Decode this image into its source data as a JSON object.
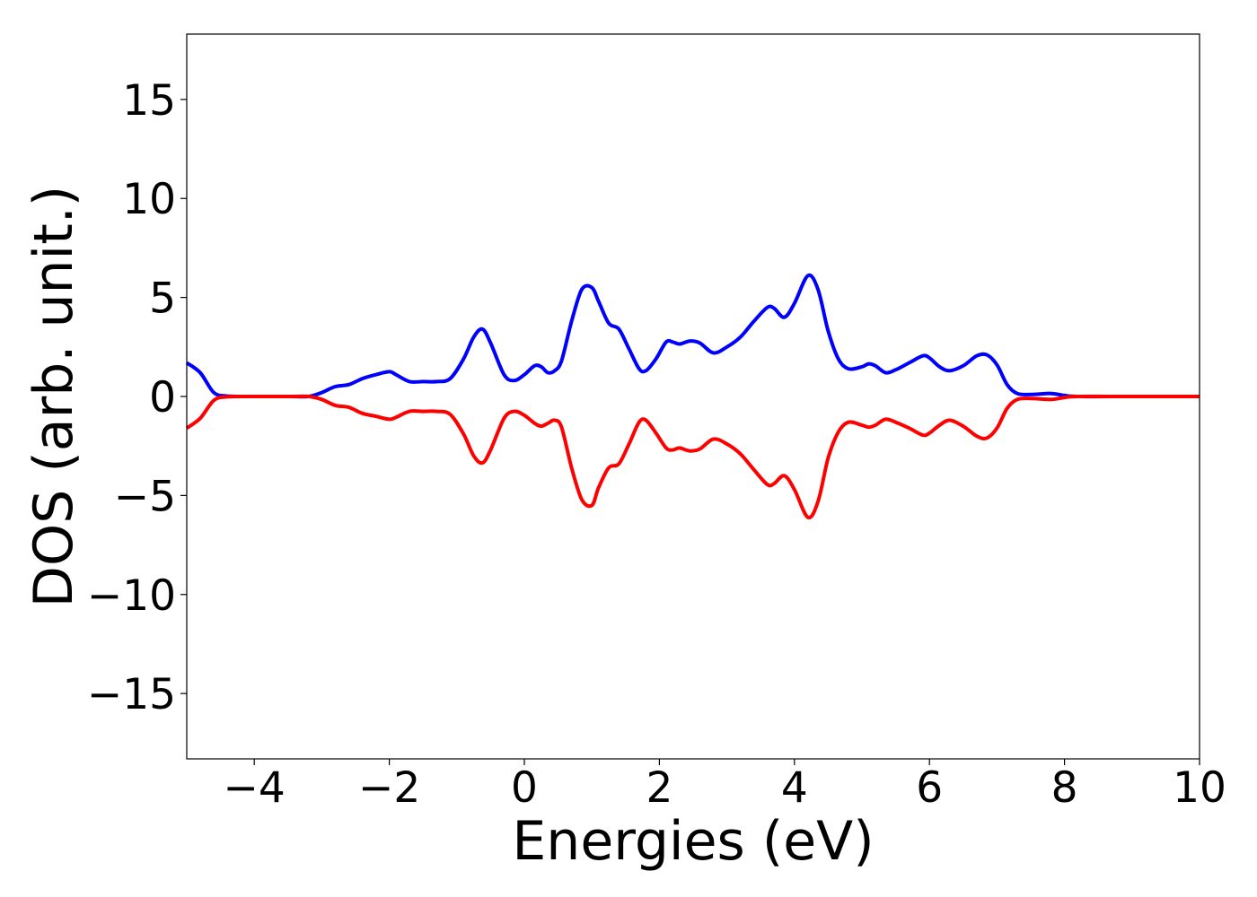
{
  "chart_data": {
    "type": "line",
    "xlabel": "Energies (eV)",
    "ylabel": "DOS (arb. unit.)",
    "xlim": [
      -5,
      10
    ],
    "ylim": [
      -18.3,
      18.3
    ],
    "xticks": [
      -4,
      -2,
      0,
      2,
      4,
      6,
      8,
      10
    ],
    "xtick_labels": [
      "−4",
      "−2",
      "0",
      "2",
      "4",
      "6",
      "8",
      "10"
    ],
    "yticks": [
      -15,
      -10,
      -5,
      0,
      5,
      10,
      15
    ],
    "ytick_labels": [
      "−15",
      "−10",
      "−5",
      "0",
      "5",
      "10",
      "15"
    ],
    "grid": false,
    "legend": "none",
    "x": [
      -5.0,
      -4.8,
      -4.6,
      -4.4,
      -4.0,
      -3.5,
      -3.2,
      -3.0,
      -2.8,
      -2.6,
      -2.4,
      -2.2,
      -2.0,
      -1.9,
      -1.7,
      -1.5,
      -1.3,
      -1.1,
      -0.9,
      -0.75,
      -0.62,
      -0.5,
      -0.3,
      -0.15,
      0.0,
      0.15,
      0.25,
      0.35,
      0.45,
      0.55,
      0.7,
      0.85,
      1.0,
      1.1,
      1.25,
      1.4,
      1.55,
      1.7,
      1.8,
      1.95,
      2.1,
      2.2,
      2.3,
      2.45,
      2.6,
      2.8,
      3.0,
      3.2,
      3.4,
      3.6,
      3.7,
      3.85,
      4.0,
      4.2,
      4.35,
      4.5,
      4.65,
      4.8,
      5.0,
      5.1,
      5.2,
      5.35,
      5.5,
      5.7,
      5.9,
      6.0,
      6.15,
      6.3,
      6.5,
      6.7,
      6.85,
      7.0,
      7.15,
      7.3,
      7.5,
      7.8,
      8.0,
      8.2,
      9.0,
      10.0
    ],
    "series": [
      {
        "color": "#0000ff",
        "values": [
          1.7,
          1.2,
          0.2,
          0.02,
          0.0,
          0.0,
          0.0,
          0.2,
          0.5,
          0.6,
          0.9,
          1.1,
          1.25,
          1.1,
          0.75,
          0.75,
          0.75,
          0.9,
          1.9,
          3.0,
          3.4,
          2.7,
          1.1,
          0.8,
          1.1,
          1.55,
          1.5,
          1.2,
          1.3,
          1.8,
          3.8,
          5.4,
          5.5,
          4.8,
          3.7,
          3.4,
          2.4,
          1.4,
          1.3,
          1.9,
          2.75,
          2.75,
          2.65,
          2.8,
          2.7,
          2.2,
          2.5,
          3.0,
          3.8,
          4.5,
          4.45,
          4.0,
          4.7,
          6.1,
          5.4,
          3.3,
          1.9,
          1.4,
          1.5,
          1.65,
          1.55,
          1.2,
          1.35,
          1.7,
          2.05,
          1.95,
          1.5,
          1.3,
          1.55,
          2.05,
          2.1,
          1.6,
          0.6,
          0.15,
          0.1,
          0.15,
          0.05,
          0.0,
          0.0,
          0.0
        ]
      },
      {
        "color": "#ff0000",
        "values": [
          -1.6,
          -1.1,
          -0.2,
          -0.02,
          0.0,
          0.0,
          0.0,
          -0.15,
          -0.45,
          -0.55,
          -0.85,
          -1.0,
          -1.15,
          -1.05,
          -0.75,
          -0.75,
          -0.75,
          -0.9,
          -1.9,
          -3.0,
          -3.35,
          -2.7,
          -1.1,
          -0.75,
          -0.95,
          -1.35,
          -1.5,
          -1.35,
          -1.2,
          -1.55,
          -3.6,
          -5.2,
          -5.5,
          -4.6,
          -3.6,
          -3.4,
          -2.4,
          -1.3,
          -1.2,
          -1.85,
          -2.6,
          -2.7,
          -2.6,
          -2.75,
          -2.65,
          -2.15,
          -2.4,
          -2.9,
          -3.7,
          -4.45,
          -4.4,
          -4.0,
          -4.7,
          -6.1,
          -5.3,
          -3.1,
          -1.8,
          -1.3,
          -1.45,
          -1.55,
          -1.45,
          -1.15,
          -1.3,
          -1.6,
          -1.95,
          -1.85,
          -1.45,
          -1.2,
          -1.5,
          -2.0,
          -2.1,
          -1.6,
          -0.6,
          -0.15,
          -0.1,
          -0.15,
          -0.05,
          0.0,
          0.0,
          0.0
        ]
      }
    ]
  }
}
